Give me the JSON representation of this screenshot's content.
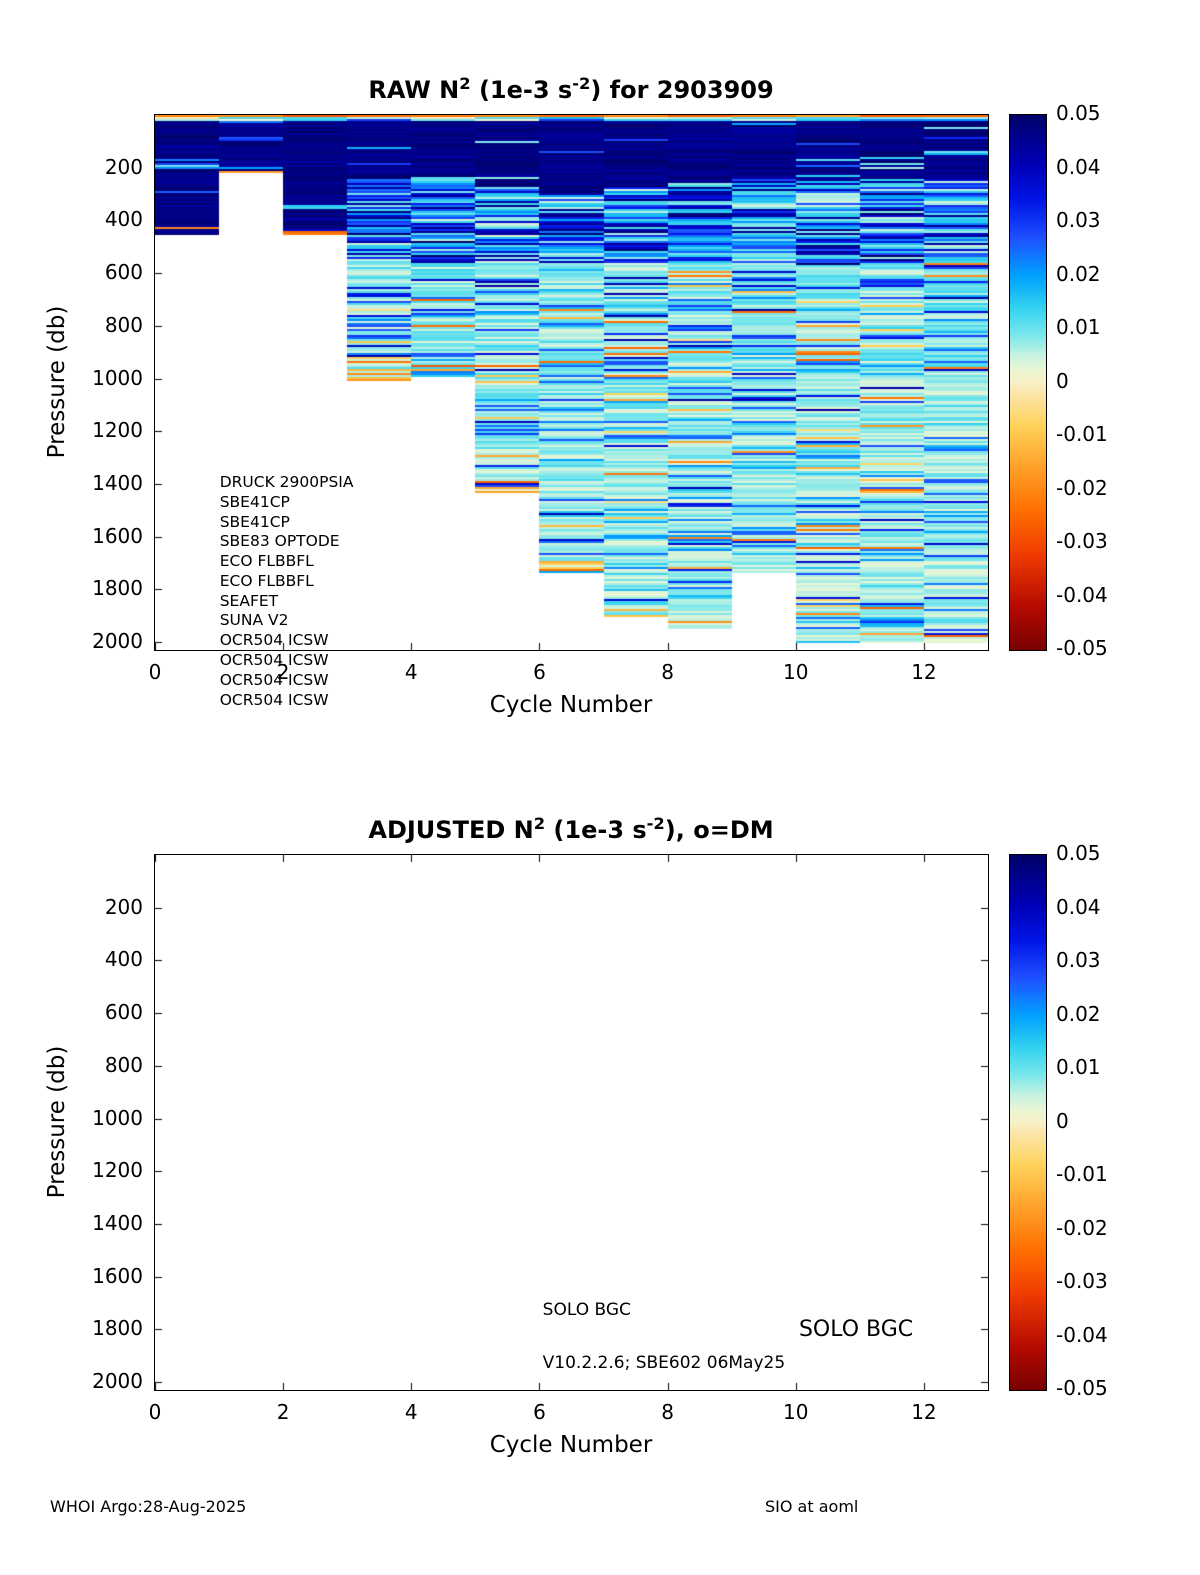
{
  "page": {
    "background": "#ffffff"
  },
  "footer": {
    "left": "WHOI Argo:28-Aug-2025",
    "right": "SIO at aoml"
  },
  "chart_data": [
    {
      "type": "heatmap",
      "title_plain": "RAW N2 (1e-3 s-2) for 2903909",
      "title_segments": [
        {
          "t": "RAW N"
        },
        {
          "t": "2",
          "sup": true
        },
        {
          "t": " (1e-3 s"
        },
        {
          "t": "-2",
          "sup": true
        },
        {
          "t": ") for 2903909"
        }
      ],
      "xlabel": "Cycle Number",
      "ylabel": "Pressure (db)",
      "xlim": [
        0,
        13
      ],
      "ylim": [
        0,
        2030
      ],
      "y_inverted": true,
      "grid": false,
      "xticks": [
        0,
        2,
        4,
        6,
        8,
        10,
        12
      ],
      "yticks": [
        200,
        400,
        600,
        800,
        1000,
        1200,
        1400,
        1600,
        1800,
        2000
      ],
      "colorbar": {
        "min": -0.05,
        "max": 0.05,
        "ticks": [
          0.05,
          0.04,
          0.03,
          0.02,
          0.01,
          0,
          -0.01,
          -0.02,
          -0.03,
          -0.04,
          -0.05
        ],
        "stops": [
          [
            -0.05,
            "#780000"
          ],
          [
            -0.042,
            "#b40a00"
          ],
          [
            -0.032,
            "#f03c00"
          ],
          [
            -0.024,
            "#ff6e00"
          ],
          [
            -0.016,
            "#ffa028"
          ],
          [
            -0.008,
            "#ffd25a"
          ],
          [
            -0.002,
            "#fae6aa"
          ],
          [
            0,
            "#f8f0c8"
          ],
          [
            0.002,
            "#eef6d2"
          ],
          [
            0.005,
            "#c8f2e0"
          ],
          [
            0.009,
            "#78e6ec"
          ],
          [
            0.014,
            "#32d2f0"
          ],
          [
            0.02,
            "#00a0ff"
          ],
          [
            0.027,
            "#1e50ff"
          ],
          [
            0.034,
            "#0014e6"
          ],
          [
            0.041,
            "#0000b4"
          ],
          [
            0.05,
            "#000069"
          ]
        ]
      },
      "columns": [
        {
          "cycle": 0,
          "max_pressure": 455,
          "dark_to": 455
        },
        {
          "cycle": 1,
          "max_pressure": 215,
          "dark_to": 215
        },
        {
          "cycle": 2,
          "max_pressure": 455,
          "dark_to": 430
        },
        {
          "cycle": 3,
          "max_pressure": 1010,
          "dark_to": 240
        },
        {
          "cycle": 4,
          "max_pressure": 995,
          "dark_to": 240
        },
        {
          "cycle": 5,
          "max_pressure": 1430,
          "dark_to": 260
        },
        {
          "cycle": 6,
          "max_pressure": 1735,
          "dark_to": 290
        },
        {
          "cycle": 7,
          "max_pressure": 1905,
          "dark_to": 265
        },
        {
          "cycle": 8,
          "max_pressure": 1950,
          "dark_to": 260
        },
        {
          "cycle": 9,
          "max_pressure": 1735,
          "dark_to": 240
        },
        {
          "cycle": 10,
          "max_pressure": 2000,
          "dark_to": 250
        },
        {
          "cycle": 11,
          "max_pressure": 2000,
          "dark_to": 255
        },
        {
          "cycle": 12,
          "max_pressure": 2000,
          "dark_to": 240
        }
      ],
      "surface_value": 0.048,
      "surface_negative_line_value": -0.02,
      "deep_typical_value": 0.008,
      "sensor_list": [
        "DRUCK 2900PSIA",
        "SBE41CP",
        "SBE41CP",
        "SBE83 OPTODE",
        "ECO FLBBFL",
        "ECO FLBBFL",
        "SEAFET",
        "SUNA V2",
        "OCR504 ICSW",
        "OCR504 ICSW",
        "OCR504 ICSW",
        "OCR504 ICSW"
      ],
      "sensor_list_position": {
        "x": 1.01,
        "pressure": 1396
      }
    },
    {
      "type": "heatmap",
      "empty": true,
      "title_plain": "ADJUSTED N2 (1e-3 s-2), o=DM",
      "title_segments": [
        {
          "t": "ADJUSTED N"
        },
        {
          "t": "2",
          "sup": true
        },
        {
          "t": " (1e-3 s"
        },
        {
          "t": "-2",
          "sup": true
        },
        {
          "t": "), o=DM"
        }
      ],
      "xlabel": "Cycle Number",
      "ylabel": "Pressure (db)",
      "xlim": [
        0,
        13
      ],
      "ylim": [
        0,
        2030
      ],
      "y_inverted": true,
      "grid": false,
      "xticks": [
        0,
        2,
        4,
        6,
        8,
        10,
        12
      ],
      "yticks": [
        200,
        400,
        600,
        800,
        1000,
        1200,
        1400,
        1600,
        1800,
        2000
      ],
      "colorbar": {
        "min": -0.05,
        "max": 0.05,
        "ticks": [
          0.05,
          0.04,
          0.03,
          0.02,
          0.01,
          0,
          -0.01,
          -0.02,
          -0.03,
          -0.04,
          -0.05
        ],
        "stops": [
          [
            -0.05,
            "#780000"
          ],
          [
            -0.042,
            "#b40a00"
          ],
          [
            -0.032,
            "#f03c00"
          ],
          [
            -0.024,
            "#ff6e00"
          ],
          [
            -0.016,
            "#ffa028"
          ],
          [
            -0.008,
            "#ffd25a"
          ],
          [
            -0.002,
            "#fae6aa"
          ],
          [
            0,
            "#f8f0c8"
          ],
          [
            0.002,
            "#eef6d2"
          ],
          [
            0.005,
            "#c8f2e0"
          ],
          [
            0.009,
            "#78e6ec"
          ],
          [
            0.014,
            "#32d2f0"
          ],
          [
            0.02,
            "#00a0ff"
          ],
          [
            0.027,
            "#1e50ff"
          ],
          [
            0.034,
            "#0014e6"
          ],
          [
            0.041,
            "#0000b4"
          ],
          [
            0.05,
            "#000069"
          ]
        ]
      },
      "columns": [],
      "annotations": [
        {
          "text": "SOLO BGC",
          "x": 6.05,
          "pressure": 1730,
          "font_size": 17
        },
        {
          "text": "SOLO BGC",
          "x": 10.05,
          "pressure": 1805,
          "font_size": 22
        },
        {
          "text": "V10.2.2.6; SBE602 06May25",
          "x": 6.05,
          "pressure": 1930,
          "font_size": 17
        }
      ]
    }
  ]
}
